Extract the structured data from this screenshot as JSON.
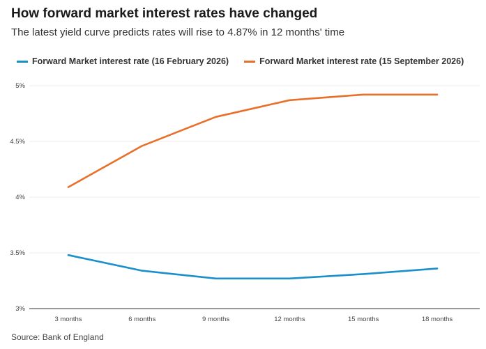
{
  "header": {
    "title": "How forward market interest rates have changed",
    "subtitle": "The latest yield curve predicts rates will rise to 4.87% in 12 months' time"
  },
  "footer": {
    "source": "Source: Bank of England"
  },
  "chart_data": {
    "type": "line",
    "title": "How forward market interest rates have changed",
    "subtitle": "The latest yield curve predicts rates will rise to 4.87% in 12 months' time",
    "xlabel": "",
    "ylabel": "",
    "categories": [
      "3 months",
      "6 months",
      "9 months",
      "12 months",
      "15 months",
      "18 months"
    ],
    "y_ticks": [
      3,
      3.5,
      4,
      4.5,
      5
    ],
    "y_tick_labels": [
      "3%",
      "3.5%",
      "4%",
      "4.5%",
      "5%"
    ],
    "ylim": [
      3,
      5
    ],
    "grid": true,
    "legend_position": "top-left",
    "series": [
      {
        "name": "Forward Market interest rate (16 February 2026)",
        "color": "#1a8fca",
        "values": [
          3.48,
          3.34,
          3.27,
          3.27,
          3.31,
          3.36
        ]
      },
      {
        "name": "Forward Market interest rate (15 September 2026)",
        "color": "#e8702a",
        "values": [
          4.09,
          4.46,
          4.72,
          4.87,
          4.92,
          4.92
        ]
      }
    ]
  }
}
